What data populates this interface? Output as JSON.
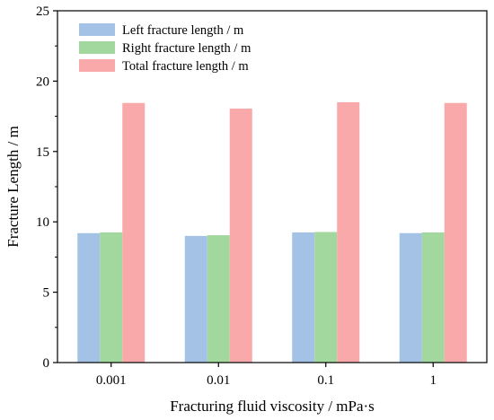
{
  "chart_data": {
    "type": "bar",
    "categories": [
      "0.001",
      "0.01",
      "0.1",
      "1"
    ],
    "series": [
      {
        "name": "Left fracture length / m",
        "values": [
          9.2,
          9.0,
          9.25,
          9.2
        ],
        "color": "#a4c2e6"
      },
      {
        "name": "Right fracture length / m",
        "values": [
          9.25,
          9.05,
          9.28,
          9.25
        ],
        "color": "#a2d89e"
      },
      {
        "name": "Total fracture length / m",
        "values": [
          18.45,
          18.05,
          18.5,
          18.45
        ],
        "color": "#f9a9aa"
      }
    ],
    "xlabel": "Fracturing fluid viscosity / mPa·s",
    "ylabel": "Fracture Length / m",
    "ylim": [
      0,
      25
    ],
    "yticks": [
      0,
      5,
      10,
      15,
      20,
      25
    ],
    "legend_position": "top-left",
    "grid": false
  }
}
